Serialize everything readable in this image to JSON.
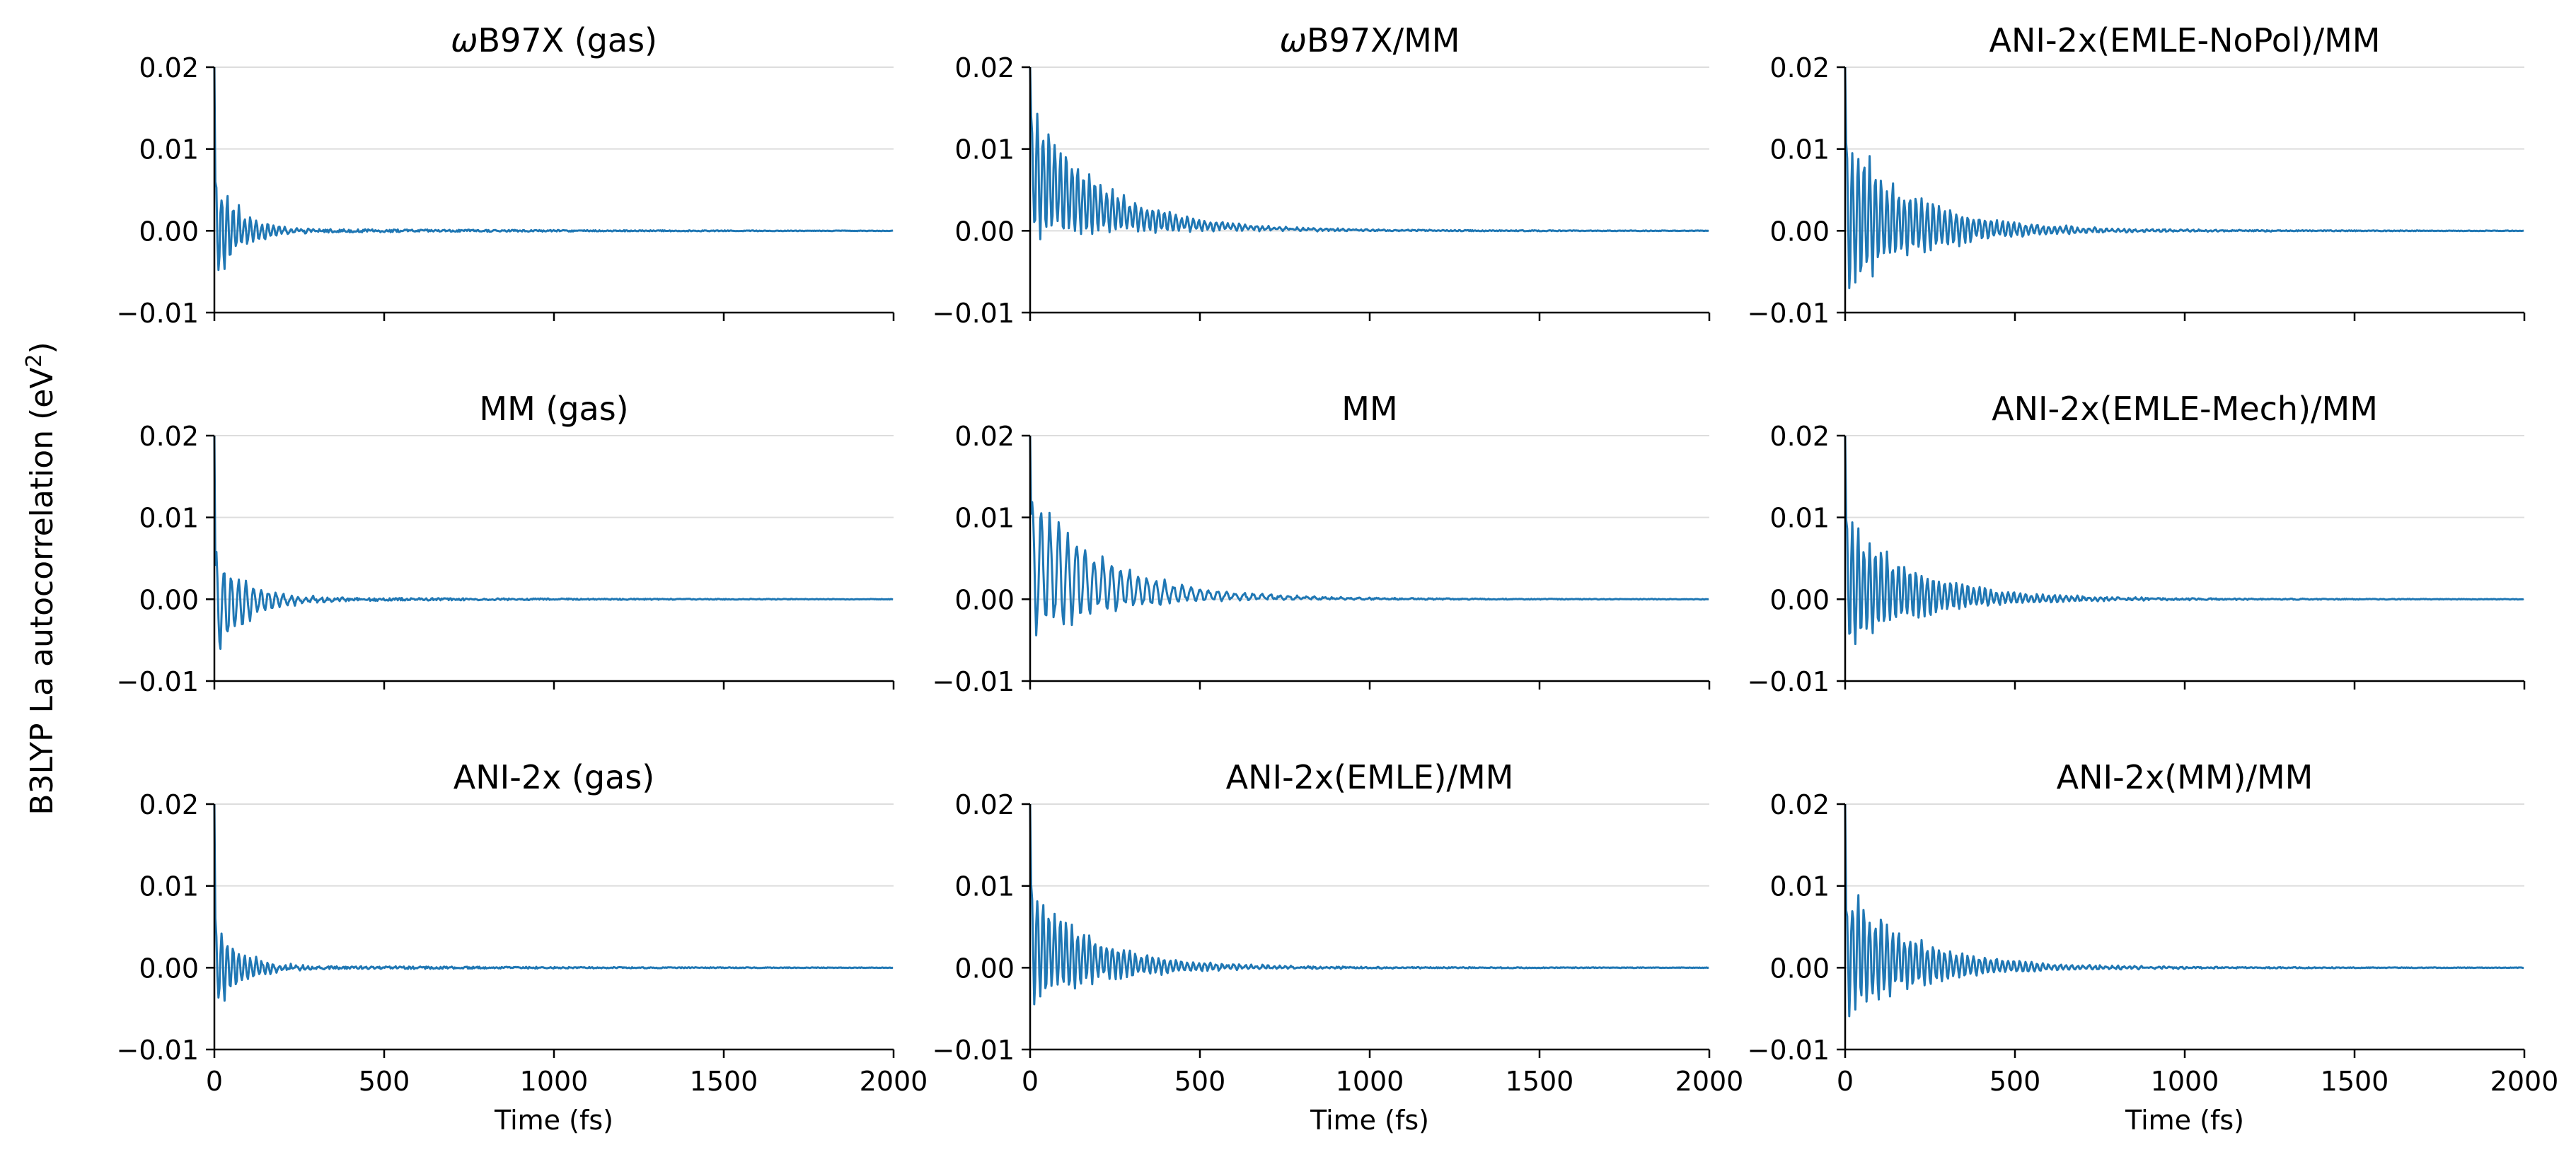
{
  "figure": {
    "ylabel": "B3LYP La autocorrelation (eV",
    "ylabel_sup": "2",
    "ylabel_close": ")",
    "line_color": "#1f77b4",
    "grid_color": "#dddddd"
  },
  "chart_data": [
    {
      "type": "line",
      "title": "ωB97X (gas)",
      "title_italic_prefix": "ω",
      "title_rest": "B97X (gas)",
      "xlim": [
        0,
        2000
      ],
      "ylim": [
        -0.01,
        0.02
      ],
      "xticks": [
        "0",
        "500",
        "1000",
        "1500",
        "2000"
      ],
      "yticks": [
        "0.02",
        "0.01",
        "0.00",
        "−0.01"
      ],
      "xlabel": "",
      "grid": "horizontal",
      "signal": {
        "amp": 0.0065,
        "decay": 70,
        "period": 17,
        "drift": 0.0,
        "drift_decay": 60,
        "spike": 0.02
      }
    },
    {
      "type": "line",
      "title": "ωB97X/MM",
      "title_italic_prefix": "ω",
      "title_rest": "B97X/MM",
      "xlim": [
        0,
        2000
      ],
      "ylim": [
        -0.01,
        0.02
      ],
      "xticks": [
        "0",
        "500",
        "1000",
        "1500",
        "2000"
      ],
      "yticks": [
        "0.02",
        "0.01",
        "0.00",
        "−0.01"
      ],
      "xlabel": "",
      "grid": "horizontal",
      "signal": {
        "amp": 0.0075,
        "decay": 200,
        "period": 17,
        "drift": 0.007,
        "drift_decay": 220,
        "spike": 0.02
      }
    },
    {
      "type": "line",
      "title": "ANI-2x(EMLE-NoPol)/MM",
      "title_italic_prefix": "",
      "title_rest": "ANI-2x(EMLE-NoPol)/MM",
      "xlim": [
        0,
        2000
      ],
      "ylim": [
        -0.01,
        0.02
      ],
      "xticks": [
        "0",
        "500",
        "1000",
        "1500",
        "2000"
      ],
      "yticks": [
        "0.02",
        "0.01",
        "0.00",
        "−0.01"
      ],
      "xlabel": "",
      "grid": "horizontal",
      "signal": {
        "amp": 0.0085,
        "decay": 210,
        "period": 17,
        "drift": 0.002,
        "drift_decay": 200,
        "spike": 0.02
      }
    },
    {
      "type": "line",
      "title": "MM (gas)",
      "title_italic_prefix": "",
      "title_rest": "MM (gas)",
      "xlim": [
        0,
        2000
      ],
      "ylim": [
        -0.01,
        0.02
      ],
      "xticks": [
        "0",
        "500",
        "1000",
        "1500",
        "2000"
      ],
      "yticks": [
        "0.02",
        "0.01",
        "0.00",
        "−0.01"
      ],
      "xlabel": "",
      "grid": "horizontal",
      "signal": {
        "amp": 0.006,
        "decay": 90,
        "period": 22,
        "drift": -0.001,
        "drift_decay": 100,
        "spike": 0.02
      }
    },
    {
      "type": "line",
      "title": "MM",
      "title_italic_prefix": "",
      "title_rest": "MM",
      "xlim": [
        0,
        2000
      ],
      "ylim": [
        -0.01,
        0.02
      ],
      "xticks": [
        "0",
        "500",
        "1000",
        "1500",
        "2000"
      ],
      "yticks": [
        "0.02",
        "0.01",
        "0.00",
        "−0.01"
      ],
      "xlabel": "",
      "grid": "horizontal",
      "signal": {
        "amp": 0.0085,
        "decay": 200,
        "period": 26,
        "drift": 0.004,
        "drift_decay": 250,
        "spike": 0.02
      }
    },
    {
      "type": "line",
      "title": "ANI-2x(EMLE-Mech)/MM",
      "title_italic_prefix": "",
      "title_rest": "ANI-2x(EMLE-Mech)/MM",
      "xlim": [
        0,
        2000
      ],
      "ylim": [
        -0.01,
        0.02
      ],
      "xticks": [
        "0",
        "500",
        "1000",
        "1500",
        "2000"
      ],
      "yticks": [
        "0.02",
        "0.01",
        "0.00",
        "−0.01"
      ],
      "xlabel": "",
      "grid": "horizontal",
      "signal": {
        "amp": 0.0075,
        "decay": 200,
        "period": 17,
        "drift": 0.002,
        "drift_decay": 200,
        "spike": 0.02
      }
    },
    {
      "type": "line",
      "title": "ANI-2x (gas)",
      "title_italic_prefix": "",
      "title_rest": "ANI-2x (gas)",
      "xlim": [
        0,
        2000
      ],
      "ylim": [
        -0.01,
        0.02
      ],
      "xticks": [
        "0",
        "500",
        "1000",
        "1500",
        "2000"
      ],
      "yticks": [
        "0.02",
        "0.01",
        "0.00",
        "−0.01"
      ],
      "xlabel": "Time (fs)",
      "grid": "horizontal",
      "signal": {
        "amp": 0.0055,
        "decay": 70,
        "period": 17,
        "drift": 0.0,
        "drift_decay": 60,
        "spike": 0.02
      }
    },
    {
      "type": "line",
      "title": "ANI-2x(EMLE)/MM",
      "title_italic_prefix": "",
      "title_rest": "ANI-2x(EMLE)/MM",
      "xlim": [
        0,
        2000
      ],
      "ylim": [
        -0.01,
        0.02
      ],
      "xticks": [
        "0",
        "500",
        "1000",
        "1500",
        "2000"
      ],
      "yticks": [
        "0.02",
        "0.01",
        "0.00",
        "−0.01"
      ],
      "xlabel": "Time (fs)",
      "grid": "horizontal",
      "signal": {
        "amp": 0.0065,
        "decay": 190,
        "period": 17,
        "drift": 0.003,
        "drift_decay": 160,
        "spike": 0.02
      }
    },
    {
      "type": "line",
      "title": "ANI-2x(MM)/MM",
      "title_italic_prefix": "",
      "title_rest": "ANI-2x(MM)/MM",
      "xlim": [
        0,
        2000
      ],
      "ylim": [
        -0.01,
        0.02
      ],
      "xticks": [
        "0",
        "500",
        "1000",
        "1500",
        "2000"
      ],
      "yticks": [
        "0.02",
        "0.01",
        "0.00",
        "−0.01"
      ],
      "xlabel": "Time (fs)",
      "grid": "horizontal",
      "signal": {
        "amp": 0.0075,
        "decay": 200,
        "period": 17,
        "drift": 0.002,
        "drift_decay": 180,
        "spike": 0.02
      }
    }
  ]
}
